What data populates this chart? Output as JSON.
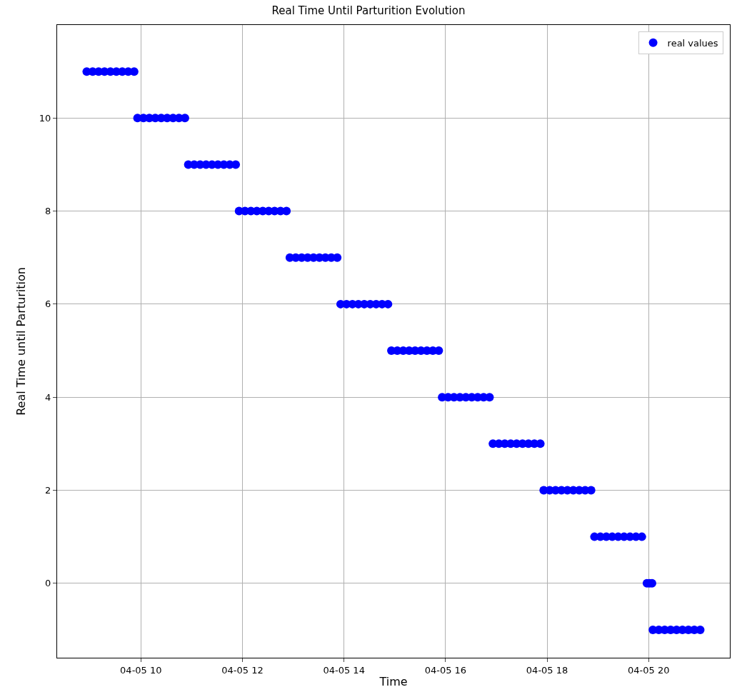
{
  "chart_data": {
    "type": "scatter",
    "title": "Real Time Until Parturition Evolution",
    "xlabel": "Time",
    "ylabel": "Real Time until Parturition",
    "xlim": [
      "--04-05T08:21",
      "--04-05T21:36"
    ],
    "ylim": [
      -1.6,
      12.0
    ],
    "xticks": [
      {
        "value": "--04-05T10:00",
        "label": "04-05 10"
      },
      {
        "value": "--04-05T12:00",
        "label": "04-05 12"
      },
      {
        "value": "--04-05T14:00",
        "label": "04-05 14"
      },
      {
        "value": "--04-05T16:00",
        "label": "04-05 16"
      },
      {
        "value": "--04-05T18:00",
        "label": "04-05 18"
      },
      {
        "value": "--04-05T20:00",
        "label": "04-05 20"
      }
    ],
    "yticks": [
      0,
      2,
      4,
      6,
      8,
      10
    ],
    "grid": true,
    "legend": "top right",
    "marker": "circle",
    "series": [
      {
        "name": "real values",
        "color": "#0000ff",
        "x": [
          "--04-05T08:56",
          "--04-05T09:03",
          "--04-05T09:10",
          "--04-05T09:17",
          "--04-05T09:24",
          "--04-05T09:31",
          "--04-05T09:38",
          "--04-05T09:45",
          "--04-05T09:52",
          "--04-05T09:56",
          "--04-05T10:03",
          "--04-05T10:10",
          "--04-05T10:17",
          "--04-05T10:24",
          "--04-05T10:31",
          "--04-05T10:38",
          "--04-05T10:45",
          "--04-05T10:52",
          "--04-05T10:56",
          "--04-05T11:03",
          "--04-05T11:10",
          "--04-05T11:17",
          "--04-05T11:24",
          "--04-05T11:31",
          "--04-05T11:38",
          "--04-05T11:45",
          "--04-05T11:52",
          "--04-05T11:56",
          "--04-05T12:03",
          "--04-05T12:10",
          "--04-05T12:17",
          "--04-05T12:24",
          "--04-05T12:31",
          "--04-05T12:38",
          "--04-05T12:45",
          "--04-05T12:52",
          "--04-05T12:56",
          "--04-05T13:03",
          "--04-05T13:10",
          "--04-05T13:17",
          "--04-05T13:24",
          "--04-05T13:31",
          "--04-05T13:38",
          "--04-05T13:45",
          "--04-05T13:52",
          "--04-05T13:56",
          "--04-05T14:03",
          "--04-05T14:10",
          "--04-05T14:17",
          "--04-05T14:24",
          "--04-05T14:31",
          "--04-05T14:38",
          "--04-05T14:45",
          "--04-05T14:52",
          "--04-05T14:56",
          "--04-05T15:03",
          "--04-05T15:10",
          "--04-05T15:17",
          "--04-05T15:24",
          "--04-05T15:31",
          "--04-05T15:38",
          "--04-05T15:45",
          "--04-05T15:52",
          "--04-05T15:56",
          "--04-05T16:03",
          "--04-05T16:10",
          "--04-05T16:17",
          "--04-05T16:24",
          "--04-05T16:31",
          "--04-05T16:38",
          "--04-05T16:45",
          "--04-05T16:52",
          "--04-05T16:56",
          "--04-05T17:03",
          "--04-05T17:10",
          "--04-05T17:17",
          "--04-05T17:24",
          "--04-05T17:31",
          "--04-05T17:38",
          "--04-05T17:45",
          "--04-05T17:52",
          "--04-05T17:56",
          "--04-05T18:03",
          "--04-05T18:10",
          "--04-05T18:17",
          "--04-05T18:24",
          "--04-05T18:31",
          "--04-05T18:38",
          "--04-05T18:45",
          "--04-05T18:52",
          "--04-05T18:56",
          "--04-05T19:03",
          "--04-05T19:10",
          "--04-05T19:17",
          "--04-05T19:24",
          "--04-05T19:31",
          "--04-05T19:38",
          "--04-05T19:45",
          "--04-05T19:52",
          "--04-05T19:58",
          "--04-05T20:01",
          "--04-05T20:04",
          "--04-05T20:05",
          "--04-05T20:12",
          "--04-05T20:19",
          "--04-05T20:26",
          "--04-05T20:33",
          "--04-05T20:40",
          "--04-05T20:47",
          "--04-05T20:54",
          "--04-05T21:01"
        ],
        "values": [
          11,
          11,
          11,
          11,
          11,
          11,
          11,
          11,
          11,
          10,
          10,
          10,
          10,
          10,
          10,
          10,
          10,
          10,
          9,
          9,
          9,
          9,
          9,
          9,
          9,
          9,
          9,
          8,
          8,
          8,
          8,
          8,
          8,
          8,
          8,
          8,
          7,
          7,
          7,
          7,
          7,
          7,
          7,
          7,
          7,
          6,
          6,
          6,
          6,
          6,
          6,
          6,
          6,
          6,
          5,
          5,
          5,
          5,
          5,
          5,
          5,
          5,
          5,
          4,
          4,
          4,
          4,
          4,
          4,
          4,
          4,
          4,
          3,
          3,
          3,
          3,
          3,
          3,
          3,
          3,
          3,
          2,
          2,
          2,
          2,
          2,
          2,
          2,
          2,
          2,
          1,
          1,
          1,
          1,
          1,
          1,
          1,
          1,
          1,
          0,
          0,
          0,
          -1,
          -1,
          -1,
          -1,
          -1,
          -1,
          -1,
          -1,
          -1
        ]
      }
    ]
  }
}
